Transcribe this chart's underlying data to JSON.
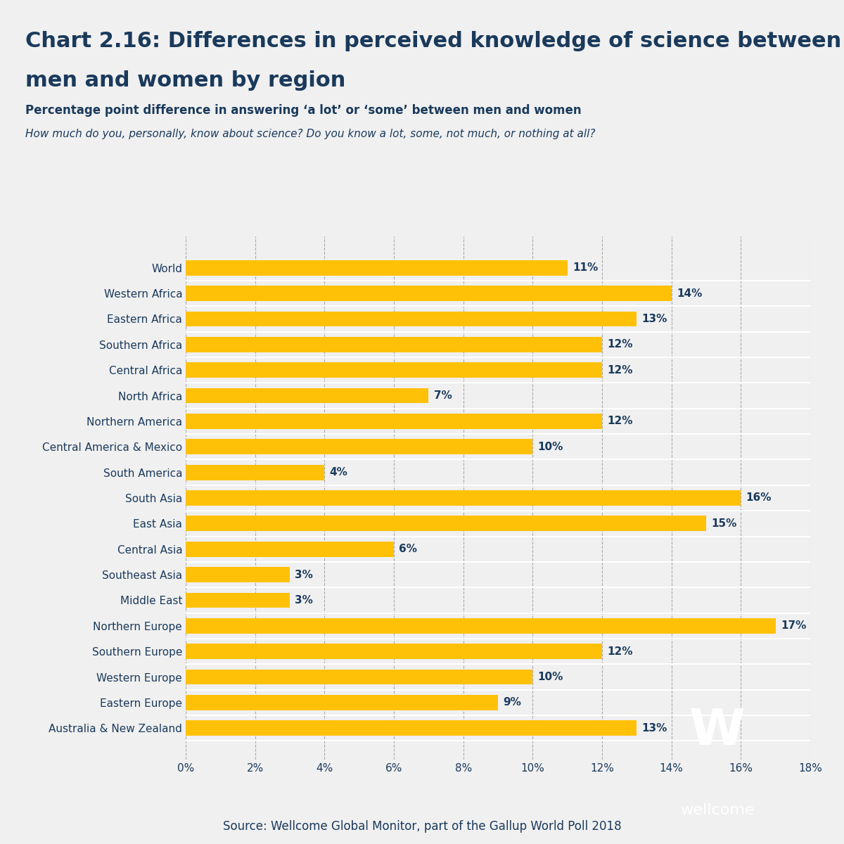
{
  "title_line1": "Chart 2.16: Differences in perceived knowledge of science between",
  "title_line2": "men and women by region",
  "subtitle1": "Percentage point difference in answering ‘a lot’ or ‘some’ between men and women",
  "subtitle2": "How much do you, personally, know about science? Do you know a lot, some, not much, or nothing at all?",
  "source_text": "Source: Wellcome Global Monitor, part of the Gallup World Poll 2018",
  "categories": [
    "World",
    "Western Africa",
    "Eastern Africa",
    "Southern Africa",
    "Central Africa",
    "North Africa",
    "Northern America",
    "Central America & Mexico",
    "South America",
    "South Asia",
    "East Asia",
    "Central Asia",
    "Southeast Asia",
    "Middle East",
    "Northern Europe",
    "Southern Europe",
    "Western Europe",
    "Eastern Europe",
    "Australia & New Zealand"
  ],
  "values": [
    11,
    14,
    13,
    12,
    12,
    7,
    12,
    10,
    4,
    16,
    15,
    6,
    3,
    3,
    17,
    12,
    10,
    9,
    13
  ],
  "bar_color": "#FFC107",
  "title_color": "#1a3a5c",
  "axis_label_color": "#1a3a5c",
  "background_color": "#f0f0f0",
  "header_bar_color": "#1a3a5c",
  "footer_bar_color": "#1a3a5c",
  "wellcome_box_color": "#1a3a5c",
  "xlim": [
    0,
    18
  ],
  "xticks": [
    0,
    2,
    4,
    6,
    8,
    10,
    12,
    14,
    16,
    18
  ]
}
